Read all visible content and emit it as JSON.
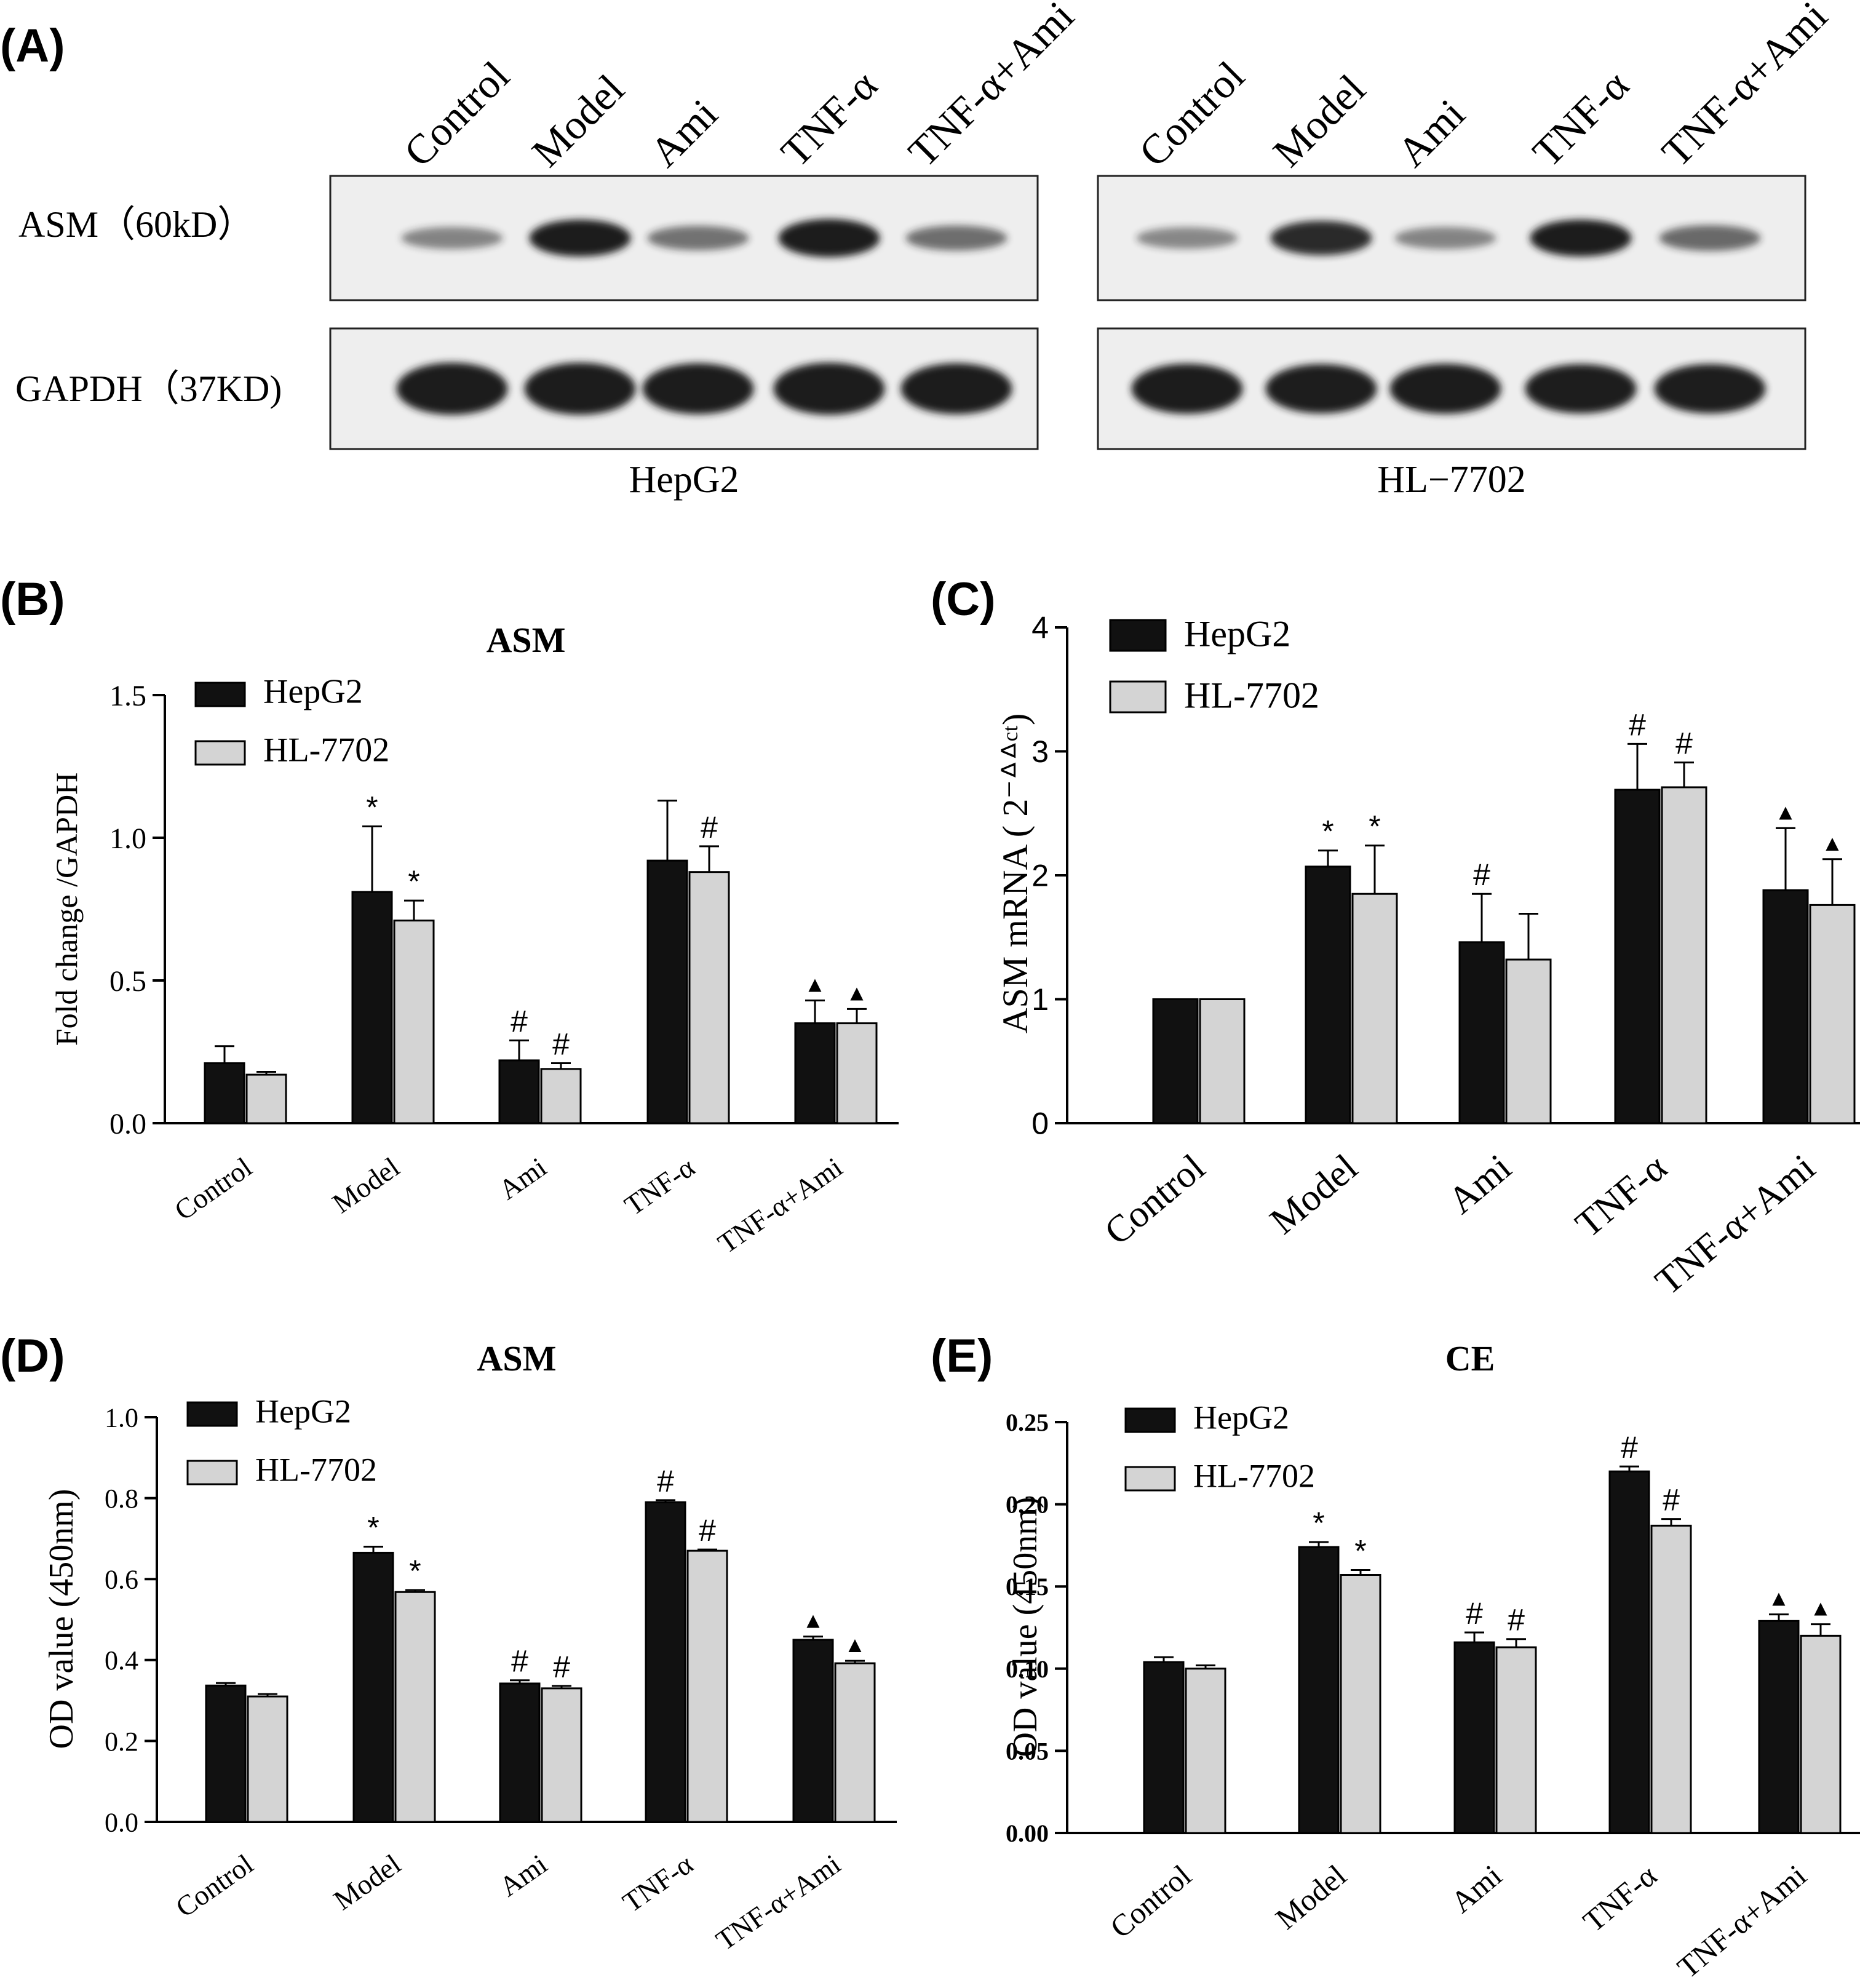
{
  "colors": {
    "hepg2": "#111111",
    "hl7702": "#d4d4d4",
    "blot_bg": "#eeeeee",
    "band": "#1c1c1c",
    "axis": "#000000"
  },
  "western_blot": {
    "panel_label": "(A)",
    "lanes": [
      "Control",
      "Model",
      "Ami",
      "TNF-α",
      "TNF-α+Ami"
    ],
    "row_labels": [
      "ASM（60kD）",
      "GAPDH（37KD)"
    ],
    "blots": [
      {
        "cell_line": "HepG2",
        "asm_intensity": [
          0.3,
          0.9,
          0.4,
          0.95,
          0.42
        ],
        "gapdh_intensity": [
          0.95,
          0.95,
          0.92,
          0.95,
          0.92
        ]
      },
      {
        "cell_line": "HL−7702",
        "asm_intensity": [
          0.28,
          0.8,
          0.3,
          0.9,
          0.45
        ],
        "gapdh_intensity": [
          0.9,
          0.88,
          0.9,
          0.88,
          0.88
        ]
      }
    ]
  },
  "chart_data": [
    {
      "panel_label": "(B)",
      "type": "bar",
      "title": "ASM",
      "xlabel": "",
      "ylabel": "Fold change /GAPDH",
      "ylim": [
        0,
        1.5
      ],
      "ticks": [
        0.0,
        0.5,
        1.0,
        1.5
      ],
      "tick_labels": [
        "0.0",
        "0.5",
        "1.0",
        "1.5"
      ],
      "categories": [
        "Control",
        "Model",
        "Ami",
        "TNF-α",
        "TNF-α+Ami"
      ],
      "series": [
        {
          "name": "HepG2",
          "values": [
            0.21,
            0.81,
            0.22,
            0.92,
            0.35
          ],
          "errors": [
            0.06,
            0.23,
            0.07,
            0.21,
            0.08
          ],
          "marks": [
            "",
            "*",
            "#",
            "",
            "▲"
          ]
        },
        {
          "name": "HL-7702",
          "values": [
            0.17,
            0.71,
            0.19,
            0.88,
            0.35
          ],
          "errors": [
            0.01,
            0.07,
            0.02,
            0.09,
            0.05
          ],
          "marks": [
            "",
            "*",
            "#",
            "#",
            "▲"
          ]
        }
      ]
    },
    {
      "panel_label": "(C)",
      "type": "bar",
      "title": "",
      "xlabel": "",
      "ylabel": "ASM mRNA ( 2⁻ᐞᐞᶜᵗ)",
      "ylim": [
        0,
        4
      ],
      "ticks": [
        0,
        1,
        2,
        3,
        4
      ],
      "tick_labels": [
        "0",
        "1",
        "2",
        "3",
        "4"
      ],
      "categories": [
        "Control",
        "Model",
        "Ami",
        "TNF-α",
        "TNF-α+Ami"
      ],
      "series": [
        {
          "name": "HepG2",
          "values": [
            1.0,
            2.07,
            1.46,
            2.69,
            1.88
          ],
          "errors": [
            0.0,
            0.13,
            0.39,
            0.37,
            0.5
          ],
          "marks": [
            "",
            "*",
            "#",
            "#",
            "▲"
          ]
        },
        {
          "name": "HL-7702",
          "values": [
            1.0,
            1.85,
            1.32,
            2.71,
            1.76
          ],
          "errors": [
            0.0,
            0.39,
            0.37,
            0.2,
            0.37
          ],
          "marks": [
            "",
            "*",
            "",
            "#",
            "▲"
          ]
        }
      ]
    },
    {
      "panel_label": "(D)",
      "type": "bar",
      "title": "ASM",
      "xlabel": "",
      "ylabel": "OD value (450nm)",
      "ylim": [
        0,
        1.0
      ],
      "ticks": [
        0.0,
        0.2,
        0.4,
        0.6,
        0.8,
        1.0
      ],
      "tick_labels": [
        "0.0",
        "0.2",
        "0.4",
        "0.6",
        "0.8",
        "1.0"
      ],
      "categories": [
        "Control",
        "Model",
        "Ami",
        "TNF-α",
        "TNF-α+Ami"
      ],
      "series": [
        {
          "name": "HepG2",
          "values": [
            0.337,
            0.665,
            0.342,
            0.79,
            0.45
          ],
          "errors": [
            0.006,
            0.015,
            0.008,
            0.005,
            0.008
          ],
          "marks": [
            "",
            "*",
            "#",
            "#",
            "▲"
          ]
        },
        {
          "name": "HL-7702",
          "values": [
            0.31,
            0.568,
            0.33,
            0.67,
            0.392
          ],
          "errors": [
            0.006,
            0.005,
            0.006,
            0.003,
            0.006
          ],
          "marks": [
            "",
            "*",
            "#",
            "#",
            "▲"
          ]
        }
      ]
    },
    {
      "panel_label": "(E)",
      "type": "bar",
      "title": "CE",
      "xlabel": "",
      "ylabel": "OD value (450nm)",
      "ylim": [
        0,
        0.25
      ],
      "ticks": [
        0.0,
        0.05,
        0.1,
        0.15,
        0.2,
        0.25
      ],
      "tick_labels": [
        "0.00",
        "0.05",
        "0.10",
        "0.15",
        "0.20",
        "0.25"
      ],
      "categories": [
        "Control",
        "Model",
        "Ami",
        "TNF-α",
        "TNF-α+Ami"
      ],
      "series": [
        {
          "name": "HepG2",
          "values": [
            0.104,
            0.174,
            0.116,
            0.22,
            0.129
          ],
          "errors": [
            0.003,
            0.003,
            0.006,
            0.003,
            0.004
          ],
          "marks": [
            "",
            "*",
            "#",
            "#",
            "▲"
          ]
        },
        {
          "name": "HL-7702",
          "values": [
            0.1,
            0.157,
            0.113,
            0.187,
            0.12
          ],
          "errors": [
            0.002,
            0.003,
            0.005,
            0.004,
            0.007
          ],
          "marks": [
            "",
            "*",
            "#",
            "#",
            "▲"
          ]
        }
      ]
    }
  ]
}
